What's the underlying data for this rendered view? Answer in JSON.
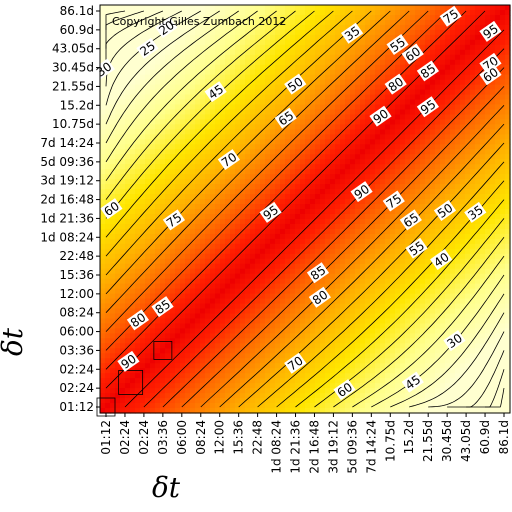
{
  "chart_data": {
    "type": "heatmap",
    "title": "",
    "xlabel": "δt",
    "ylabel": "δt",
    "annotation": "Copyright Gilles Zumbach 2012",
    "categories": [
      "01:12",
      "02:24",
      "02:24",
      "03:36",
      "06:00",
      "08:24",
      "12:00",
      "15:36",
      "22:48",
      "1d 08:24",
      "1d 21:36",
      "2d 16:48",
      "3d 19:12",
      "5d 09:36",
      "7d 14:24",
      "10.75d",
      "15.2d",
      "21.55d",
      "30.45d",
      "43.05d",
      "60.9d",
      "86.1d"
    ],
    "x_tick_labels": [
      "01:12",
      "02:24",
      "02:24",
      "03:36",
      "06:00",
      "08:24",
      "12:00",
      "15:36",
      "22:48",
      "1d 08:24",
      "1d 21:36",
      "2d 16:48",
      "3d 19:12",
      "5d 09:36",
      "7d 14:24",
      "10.75d",
      "15.2d",
      "21.55d",
      "30.45d",
      "43.05d",
      "60.9d",
      "86.1d"
    ],
    "y_tick_labels": [
      "01:12",
      "02:24",
      "02:24",
      "03:36",
      "06:00",
      "08:24",
      "12:00",
      "15:36",
      "22:48",
      "1d 08:24",
      "1d 21:36",
      "2d 16:48",
      "3d 19:12",
      "5d 09:36",
      "7d 14:24",
      "10.75d",
      "15.2d",
      "21.55d",
      "30.45d",
      "43.05d",
      "60.9d",
      "86.1d"
    ],
    "contour_levels": [
      20,
      25,
      30,
      35,
      40,
      45,
      50,
      55,
      60,
      65,
      70,
      75,
      80,
      85,
      90,
      95
    ],
    "contour_labels": [
      {
        "text": "20",
        "x": 3.2,
        "y": 20.1
      },
      {
        "text": "25",
        "x": 2.2,
        "y": 19.0
      },
      {
        "text": "30",
        "x": -0.1,
        "y": 17.9
      },
      {
        "text": "35",
        "x": 13.0,
        "y": 19.8
      },
      {
        "text": "55",
        "x": 15.4,
        "y": 19.2
      },
      {
        "text": "60",
        "x": 16.2,
        "y": 18.7
      },
      {
        "text": "75",
        "x": 18.2,
        "y": 20.7
      },
      {
        "text": "95",
        "x": 20.3,
        "y": 19.9
      },
      {
        "text": "45",
        "x": 5.8,
        "y": 16.7
      },
      {
        "text": "50",
        "x": 10.0,
        "y": 17.1
      },
      {
        "text": "80",
        "x": 15.3,
        "y": 17.1
      },
      {
        "text": "85",
        "x": 17.0,
        "y": 17.8
      },
      {
        "text": "70",
        "x": 20.3,
        "y": 18.2
      },
      {
        "text": "60",
        "x": 20.3,
        "y": 17.6
      },
      {
        "text": "65",
        "x": 9.5,
        "y": 15.3
      },
      {
        "text": "90",
        "x": 14.5,
        "y": 15.4
      },
      {
        "text": "95",
        "x": 17.0,
        "y": 15.9
      },
      {
        "text": "70",
        "x": 6.5,
        "y": 13.1
      },
      {
        "text": "60",
        "x": 0.3,
        "y": 10.5
      },
      {
        "text": "75",
        "x": 3.6,
        "y": 9.9
      },
      {
        "text": "95",
        "x": 8.7,
        "y": 10.3
      },
      {
        "text": "90",
        "x": 13.5,
        "y": 11.4
      },
      {
        "text": "75",
        "x": 15.2,
        "y": 10.9
      },
      {
        "text": "65",
        "x": 16.1,
        "y": 9.9
      },
      {
        "text": "50",
        "x": 17.9,
        "y": 10.4
      },
      {
        "text": "35",
        "x": 19.5,
        "y": 10.3
      },
      {
        "text": "55",
        "x": 16.4,
        "y": 8.4
      },
      {
        "text": "40",
        "x": 17.7,
        "y": 7.8
      },
      {
        "text": "85",
        "x": 11.2,
        "y": 7.1
      },
      {
        "text": "80",
        "x": 11.3,
        "y": 5.8
      },
      {
        "text": "85",
        "x": 3.0,
        "y": 5.3
      },
      {
        "text": "80",
        "x": 1.7,
        "y": 4.6
      },
      {
        "text": "90",
        "x": 1.2,
        "y": 2.4
      },
      {
        "text": "70",
        "x": 10.0,
        "y": 2.3
      },
      {
        "text": "30",
        "x": 18.4,
        "y": 3.5
      },
      {
        "text": "60",
        "x": 12.6,
        "y": 0.9
      },
      {
        "text": "45",
        "x": 16.2,
        "y": 1.3
      }
    ],
    "colormap": [
      "#ffffd0",
      "#ffff8a",
      "#ffe600",
      "#ffb000",
      "#ff6a00",
      "#ff1e00",
      "#ee0000"
    ],
    "grid": false,
    "legend": "none"
  }
}
